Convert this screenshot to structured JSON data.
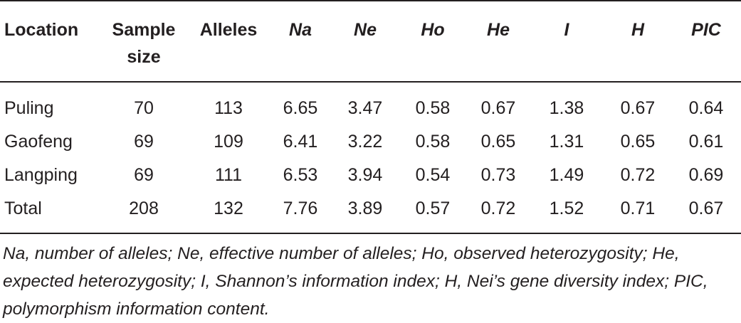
{
  "table": {
    "headers": [
      {
        "label": "Location",
        "italic": false
      },
      {
        "label": "Sample size",
        "italic": false
      },
      {
        "label": "Alleles",
        "italic": false
      },
      {
        "label": "Na",
        "italic": true
      },
      {
        "label": "Ne",
        "italic": true
      },
      {
        "label": "Ho",
        "italic": true
      },
      {
        "label": "He",
        "italic": true
      },
      {
        "label": "I",
        "italic": true
      },
      {
        "label": "H",
        "italic": true
      },
      {
        "label": "PIC",
        "italic": true
      }
    ],
    "rows": [
      [
        "Puling",
        "70",
        "113",
        "6.65",
        "3.47",
        "0.58",
        "0.67",
        "1.38",
        "0.67",
        "0.64"
      ],
      [
        "Gaofeng",
        "69",
        "109",
        "6.41",
        "3.22",
        "0.58",
        "0.65",
        "1.31",
        "0.65",
        "0.61"
      ],
      [
        "Langping",
        "69",
        "111",
        "6.53",
        "3.94",
        "0.54",
        "0.73",
        "1.49",
        "0.72",
        "0.69"
      ],
      [
        "Total",
        "208",
        "132",
        "7.76",
        "3.89",
        "0.57",
        "0.72",
        "1.52",
        "0.71",
        "0.67"
      ]
    ],
    "footnote": "Na, number of alleles; Ne, effective number of alleles; Ho, observed heterozygosity; He, expected heterozygosity; I, Shannon’s information index; H, Nei’s gene diversity index; PIC, polymorphism information content."
  }
}
